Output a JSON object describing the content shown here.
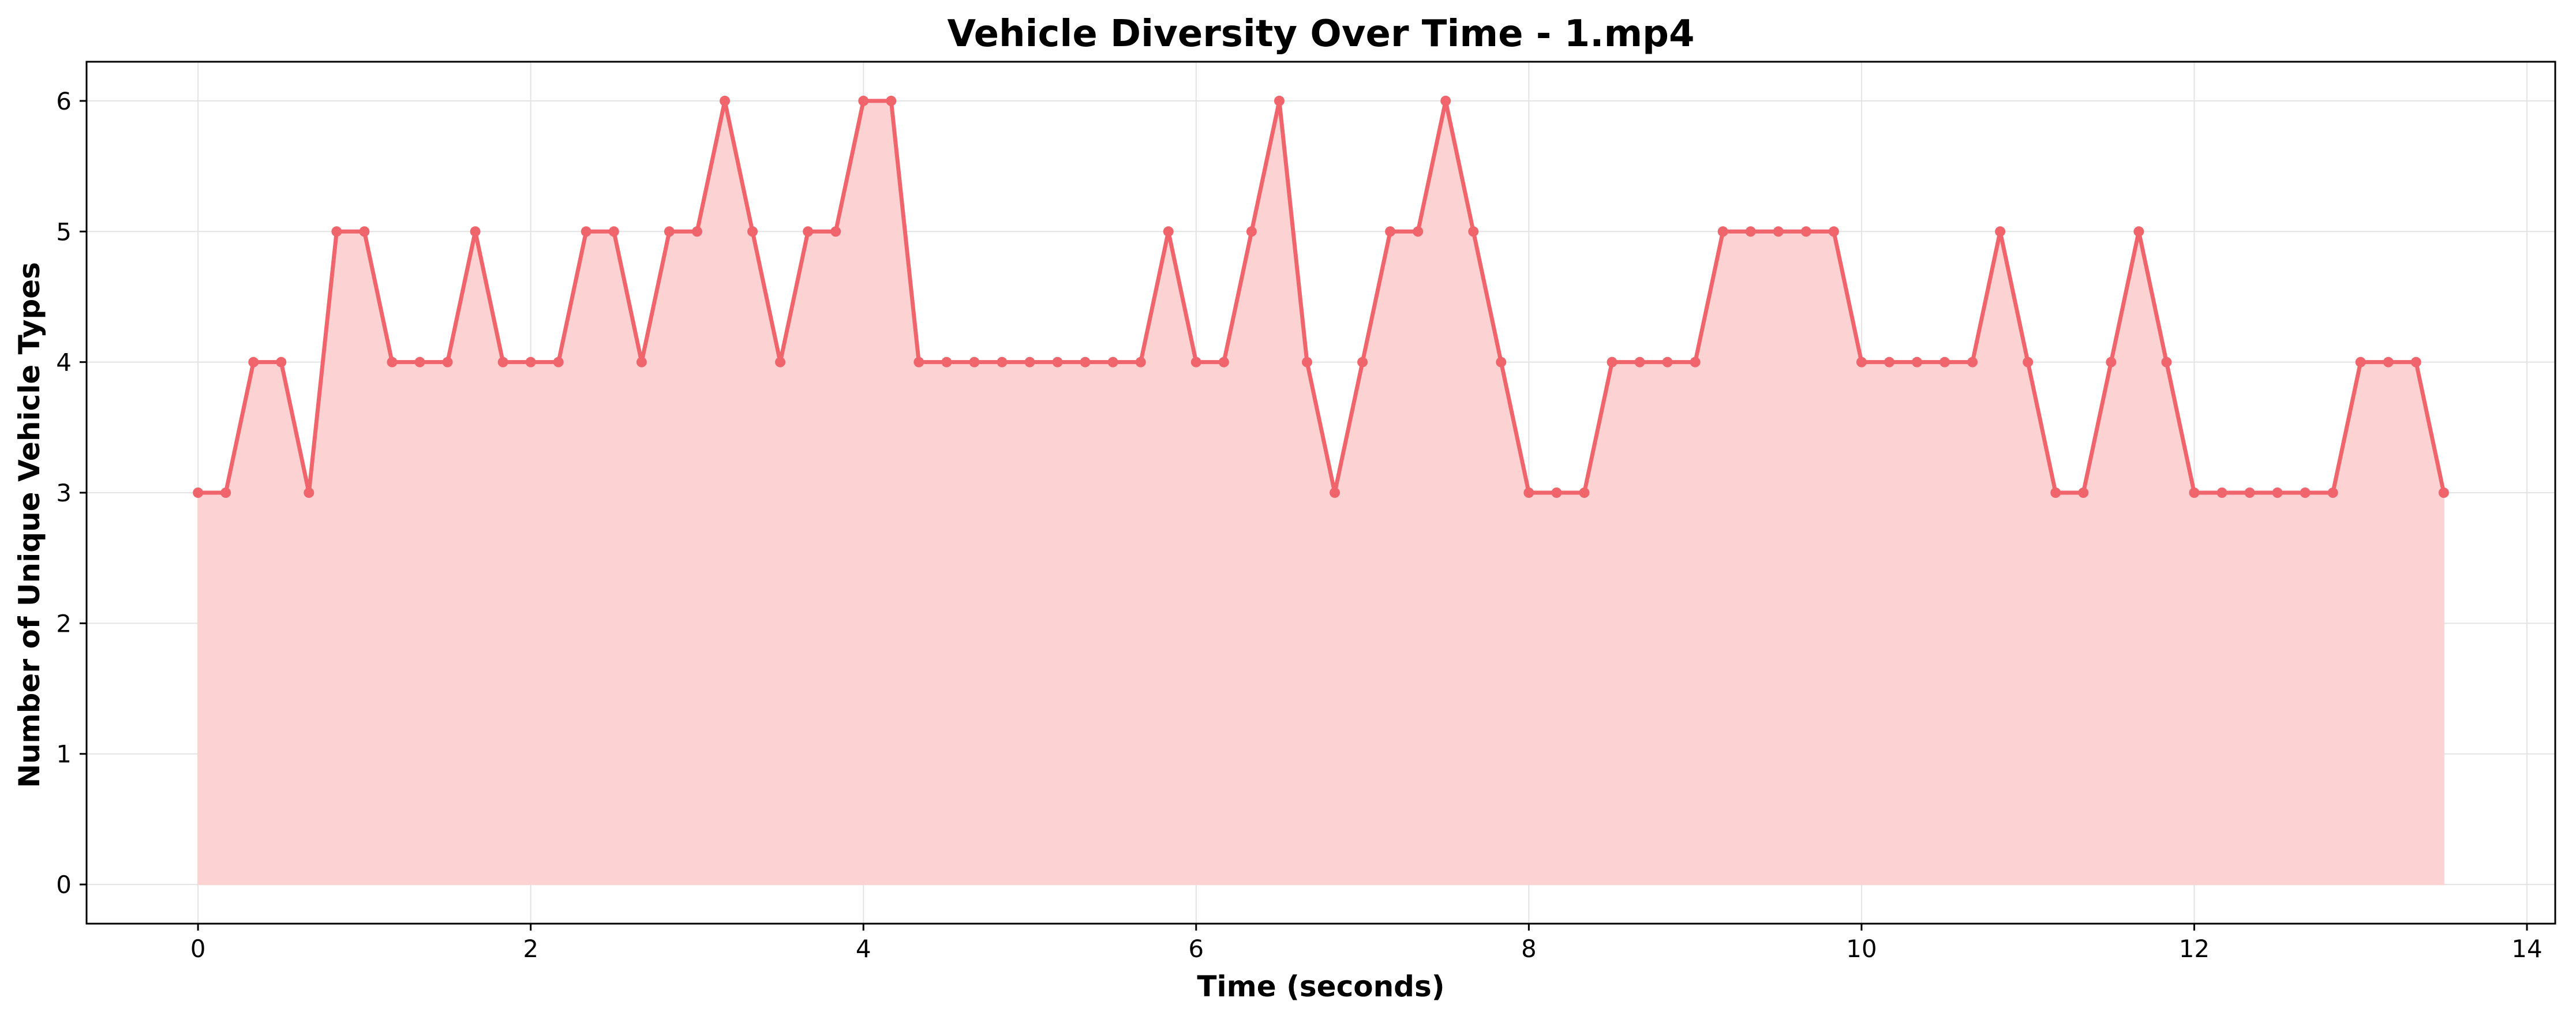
{
  "chart_data": {
    "type": "area",
    "title": "Vehicle Diversity Over Time - 1.mp4",
    "xlabel": "Time (seconds)",
    "ylabel": "Number of Unique Vehicle Types",
    "xlim": [
      -0.67,
      14.17
    ],
    "ylim": [
      -0.3,
      6.3
    ],
    "xticks": [
      0,
      2,
      4,
      6,
      8,
      10,
      12,
      14
    ],
    "yticks": [
      0,
      1,
      2,
      3,
      4,
      5,
      6
    ],
    "grid": true,
    "colors": {
      "line": "#f0656c",
      "fill": "#fdd2d3",
      "grid": "#e3e3e3",
      "axes": "#000000"
    },
    "series": [
      {
        "x": [
          0,
          0.1667,
          0.3333,
          0.5,
          0.6667,
          0.8333,
          1,
          1.1667,
          1.3333,
          1.5,
          1.6667,
          1.8333,
          2,
          2.1667,
          2.3333,
          2.5,
          2.6667,
          2.8333,
          3,
          3.1667,
          3.3333,
          3.5,
          3.6667,
          3.8333,
          4,
          4.1667,
          4.3333,
          4.5,
          4.6667,
          4.8333,
          5,
          5.1667,
          5.3333,
          5.5,
          5.6667,
          5.8333,
          6,
          6.1667,
          6.3333,
          6.5,
          6.6667,
          6.8333,
          7,
          7.1667,
          7.3333,
          7.5,
          7.6667,
          7.8333,
          8,
          8.1667,
          8.3333,
          8.5,
          8.6667,
          8.8333,
          9,
          9.1667,
          9.3333,
          9.5,
          9.6667,
          9.8333,
          10,
          10.1667,
          10.3333,
          10.5,
          10.6667,
          10.8333,
          11,
          11.1667,
          11.3333,
          11.5,
          11.6667,
          11.8333,
          12,
          12.1667,
          12.3333,
          12.5,
          12.6667,
          12.8333,
          13,
          13.1667,
          13.3333,
          13.5
        ],
        "y": [
          3,
          3,
          4,
          4,
          3,
          5,
          5,
          4,
          4,
          4,
          5,
          4,
          4,
          4,
          5,
          5,
          4,
          5,
          5,
          6,
          5,
          4,
          5,
          5,
          6,
          6,
          4,
          4,
          4,
          4,
          4,
          4,
          4,
          4,
          4,
          5,
          4,
          4,
          5,
          6,
          4,
          3,
          4,
          5,
          5,
          6,
          5,
          4,
          3,
          3,
          3,
          4,
          4,
          4,
          4,
          5,
          5,
          5,
          5,
          5,
          4,
          4,
          4,
          4,
          4,
          5,
          4,
          3,
          3,
          4,
          5,
          4,
          3,
          3,
          3,
          3,
          3,
          3,
          4,
          4,
          4,
          3
        ]
      }
    ]
  }
}
